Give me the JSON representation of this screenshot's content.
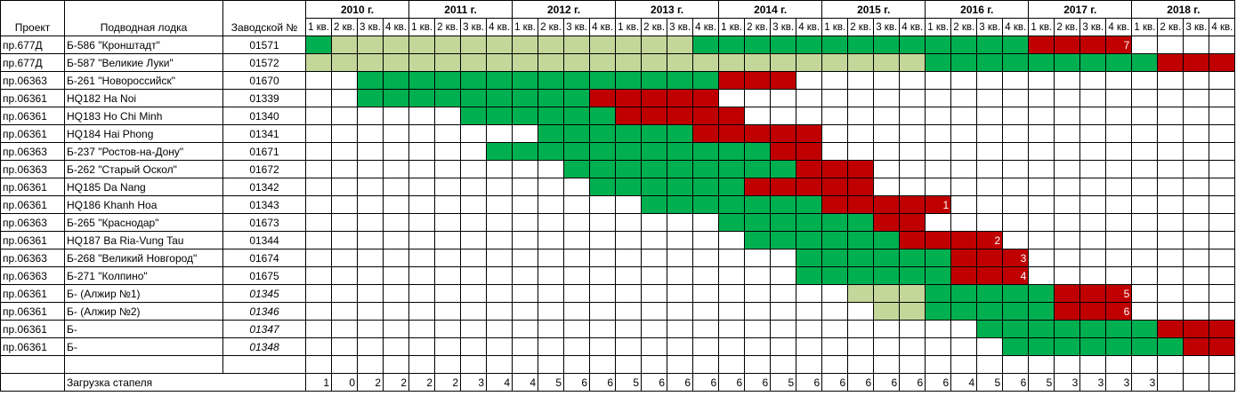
{
  "header": {
    "project": "Проект",
    "name": "Подводная лодка",
    "number": "Заводской №",
    "years": [
      "2010 г.",
      "2011 г.",
      "2012 г.",
      "2013 г.",
      "2014 г.",
      "2015 г.",
      "2016 г.",
      "2017 г.",
      "2018 г."
    ],
    "quarters": [
      "1 кв.",
      "2 кв.",
      "3 кв.",
      "4 кв."
    ]
  },
  "colors": {
    "G": "#00b050",
    "L": "#c4d79b",
    "R": "#c00000"
  },
  "rows": [
    {
      "project": "пр.677Д",
      "name": "Б-586 \"Кронштадт\"",
      "number": "01571",
      "italic": false,
      "cells": "GLLLLLLLLLLLLLLGGGGGGGGGGGGGRRRR....",
      "tag": {
        "col": 31,
        "text": 7
      }
    },
    {
      "project": "пр.677Д",
      "name": "Б-587 \"Великие Луки\"",
      "number": "01572",
      "italic": false,
      "cells": "LLLLLLLLLLLLLLLLLLLLLLLLGGGGGGGGGRRR"
    },
    {
      "project": "пр.06363",
      "name": "Б-261 \"Новороссийск\"",
      "number": "01670",
      "italic": false,
      "cells": "..GGGGGGGGGGGGGGRRR................."
    },
    {
      "project": "пр.06361",
      "name": "HQ182 Ha Noi",
      "number": "01339",
      "italic": false,
      "cells": "..GGGGGGGGGRRRRR...................."
    },
    {
      "project": "пр.06361",
      "name": "HQ183 Ho Chi Minh",
      "number": "01340",
      "italic": false,
      "cells": "......GGGGGGRRRRR..................."
    },
    {
      "project": "пр.06361",
      "name": "HQ184 Hai Phong",
      "number": "01341",
      "italic": false,
      "cells": ".........GGGGGGRRRRR................"
    },
    {
      "project": "пр.06363",
      "name": "Б-237 \"Ростов-на-Дону\"",
      "number": "01671",
      "italic": false,
      "cells": ".......GGGGGGGGGGGRR................"
    },
    {
      "project": "пр.06363",
      "name": "Б-262 \"Старый Оскол\"",
      "number": "01672",
      "italic": false,
      "cells": "..........GGGGGGGGGRRR.............."
    },
    {
      "project": "пр.06361",
      "name": "HQ185 Da Nang",
      "number": "01342",
      "italic": false,
      "cells": "...........GGGGGGRRRRR.............."
    },
    {
      "project": "пр.06361",
      "name": "HQ186 Khanh Hoa",
      "number": "01343",
      "italic": false,
      "cells": ".............GGGGGGGRRRRR...........",
      "tag": {
        "col": 24,
        "text": 1
      }
    },
    {
      "project": "пр.06363",
      "name": "Б-265 \"Краснодар\"",
      "number": "01673",
      "italic": false,
      "cells": "................GGGGGGRR............"
    },
    {
      "project": "пр.06361",
      "name": "HQ187 Ba Ria-Vung Tau",
      "number": "01344",
      "italic": false,
      "cells": ".................GGGGGGRRRR.........",
      "tag": {
        "col": 26,
        "text": 2
      }
    },
    {
      "project": "пр.06363",
      "name": "Б-268 \"Великий Новгород\"",
      "number": "01674",
      "italic": false,
      "cells": "...................GGGGGGRRR........",
      "tag": {
        "col": 27,
        "text": 3
      }
    },
    {
      "project": "пр.06363",
      "name": "Б-271 \"Колпино\"",
      "number": "01675",
      "italic": false,
      "cells": "...................GGGGGGRRR........",
      "tag": {
        "col": 27,
        "text": 4
      }
    },
    {
      "project": "пр.06361",
      "name": "Б- (Алжир №1)",
      "number": "01345",
      "italic": true,
      "cells": ".....................LLLGGGGGRRR....",
      "tag": {
        "col": 31,
        "text": 5
      }
    },
    {
      "project": "пр.06361",
      "name": "Б- (Алжир №2)",
      "number": "01346",
      "italic": true,
      "cells": "......................LLGGGGGRRR....",
      "tag": {
        "col": 31,
        "text": 6
      }
    },
    {
      "project": "пр.06361",
      "name": "Б-",
      "number": "01347",
      "italic": true,
      "cells": "..........................GGGGGGGRRR"
    },
    {
      "project": "пр.06361",
      "name": "Б-",
      "number": "01348",
      "italic": true,
      "cells": "...........................GGGGGGGRR"
    }
  ],
  "load_label": "Загрузка стапеля",
  "load": [
    1,
    0,
    2,
    2,
    2,
    2,
    3,
    4,
    4,
    5,
    6,
    6,
    5,
    6,
    6,
    6,
    6,
    6,
    5,
    6,
    6,
    6,
    6,
    6,
    6,
    4,
    5,
    6,
    5,
    3,
    3,
    3,
    3,
    null,
    null,
    null
  ]
}
